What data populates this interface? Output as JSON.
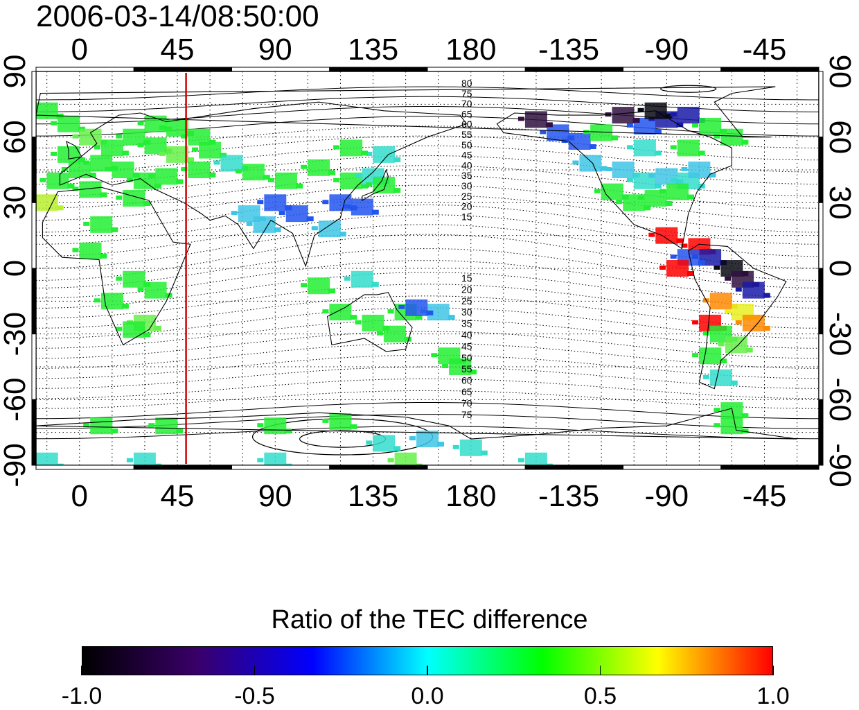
{
  "timestamp": "2006-03-14/08:50:00",
  "map": {
    "projection": "cylindrical equidistant",
    "lon_range": [
      -20,
      340
    ],
    "lat_range": [
      -90,
      90
    ],
    "top_lon_labels": [
      "0",
      "45",
      "90",
      "135",
      "180",
      "-135",
      "-90",
      "-45"
    ],
    "bottom_lon_labels": [
      "0",
      "45",
      "90",
      "135",
      "180",
      "-135",
      "-90",
      "-45"
    ],
    "left_lat_labels": [
      "90",
      "60",
      "30",
      "0",
      "-30",
      "-60",
      "-90"
    ],
    "right_lat_labels": [
      "90",
      "60",
      "30",
      "0",
      "-30",
      "-60",
      "-90"
    ],
    "grid": "dotted, every 15 degrees",
    "marker_line_longitude": 49,
    "marker_line_color": "#cc0000",
    "magnetic_contour_labels_north": [
      "80",
      "75",
      "70",
      "65",
      "60",
      "55",
      "50",
      "45",
      "40",
      "35",
      "30",
      "25",
      "20",
      "15"
    ],
    "magnetic_contour_labels_south": [
      "15",
      "20",
      "25",
      "30",
      "35",
      "40",
      "45",
      "50",
      "55",
      "60",
      "65",
      "70",
      "75"
    ]
  },
  "colorbar": {
    "title": "Ratio of the TEC difference",
    "min": -1.0,
    "max": 1.0,
    "tick_labels": [
      "-1.0",
      "-0.5",
      "0.0",
      "0.5",
      "1.0"
    ],
    "colormap": [
      "#000000",
      "#3a006a",
      "#0000ff",
      "#00ffff",
      "#00ff00",
      "#ffff00",
      "#ff0000"
    ]
  }
}
